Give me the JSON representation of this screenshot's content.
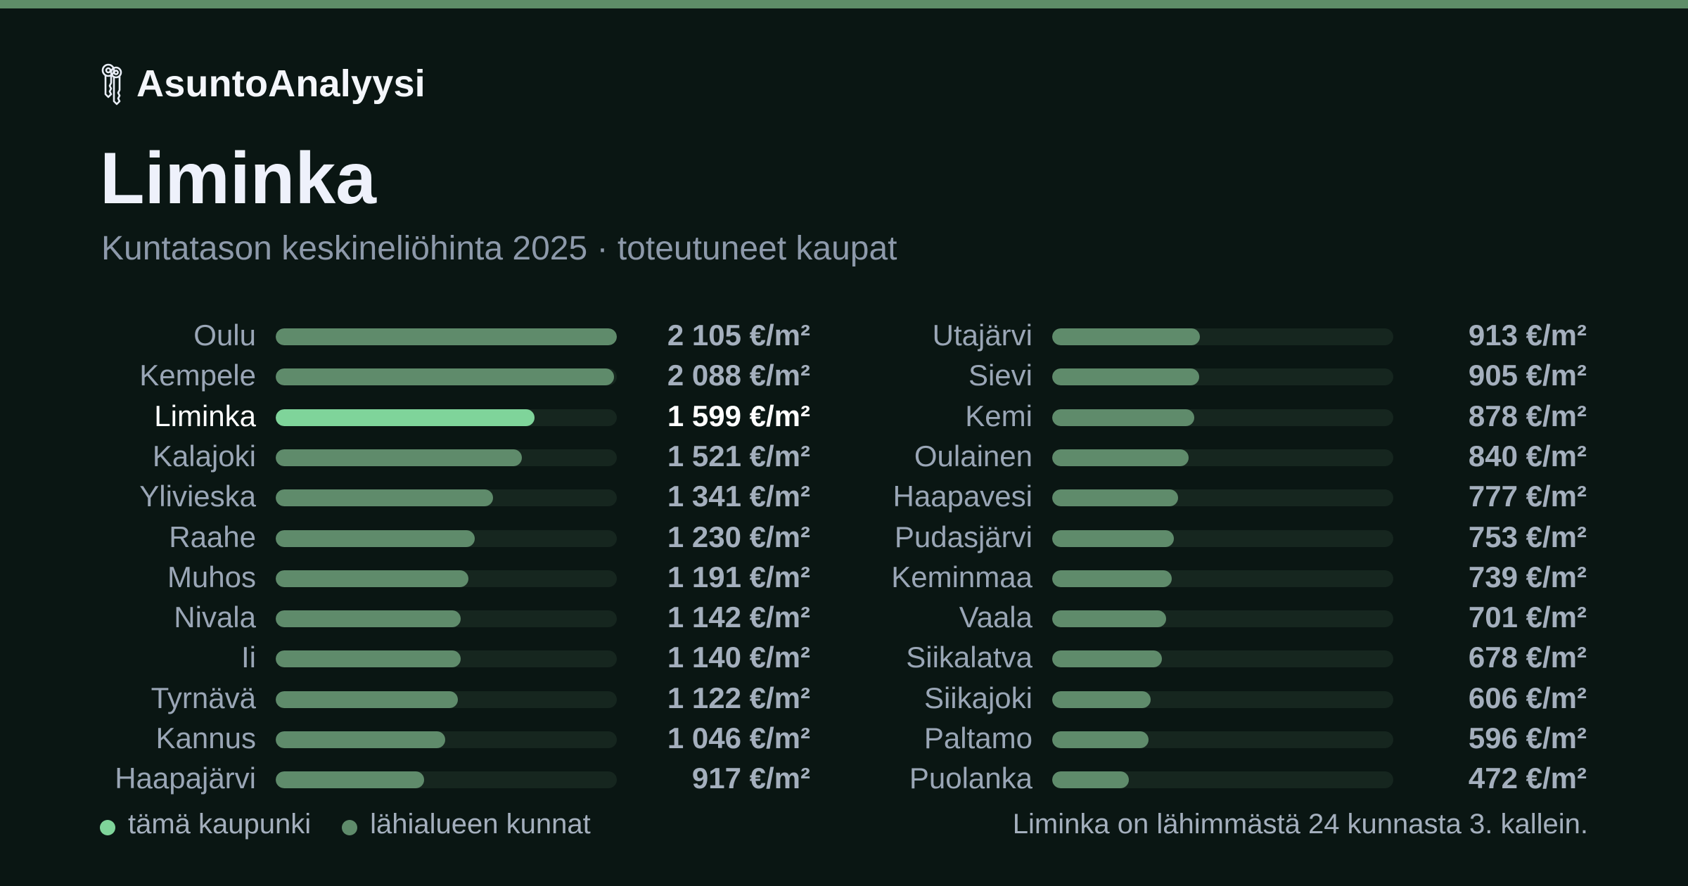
{
  "brand": {
    "name": "AsuntoAnalyysi",
    "icon": "keys-icon"
  },
  "title": "Liminka",
  "subtitle": "Kuntatason keskineliöhinta 2025 · toteutuneet kaupat",
  "colors": {
    "current_city": "#7fd49a",
    "nearby": "#5f8b6b",
    "track": "#16261f",
    "background": "#0a1613",
    "accent_bar": "#5e8d68"
  },
  "legend": [
    {
      "label": "tämä kaupunki",
      "color": "#7fd49a"
    },
    {
      "label": "lähialueen kunnat",
      "color": "#5f8b6b"
    }
  ],
  "footnote": "Liminka on lähimmästä 24 kunnasta 3. kallein.",
  "chart_data": {
    "type": "bar",
    "orientation": "horizontal",
    "unit": "€/m²",
    "xlim": [
      0,
      2105
    ],
    "highlight": "Liminka",
    "columns": [
      [
        {
          "name": "Oulu",
          "value": 2105,
          "label": "2 105 €/m²"
        },
        {
          "name": "Kempele",
          "value": 2088,
          "label": "2 088 €/m²"
        },
        {
          "name": "Liminka",
          "value": 1599,
          "label": "1 599 €/m²",
          "current": true
        },
        {
          "name": "Kalajoki",
          "value": 1521,
          "label": "1 521 €/m²"
        },
        {
          "name": "Ylivieska",
          "value": 1341,
          "label": "1 341 €/m²"
        },
        {
          "name": "Raahe",
          "value": 1230,
          "label": "1 230 €/m²"
        },
        {
          "name": "Muhos",
          "value": 1191,
          "label": "1 191 €/m²"
        },
        {
          "name": "Nivala",
          "value": 1142,
          "label": "1 142 €/m²"
        },
        {
          "name": "Ii",
          "value": 1140,
          "label": "1 140 €/m²"
        },
        {
          "name": "Tyrnävä",
          "value": 1122,
          "label": "1 122 €/m²"
        },
        {
          "name": "Kannus",
          "value": 1046,
          "label": "1 046 €/m²"
        },
        {
          "name": "Haapajärvi",
          "value": 917,
          "label": "917 €/m²"
        }
      ],
      [
        {
          "name": "Utajärvi",
          "value": 913,
          "label": "913 €/m²"
        },
        {
          "name": "Sievi",
          "value": 905,
          "label": "905 €/m²"
        },
        {
          "name": "Kemi",
          "value": 878,
          "label": "878 €/m²"
        },
        {
          "name": "Oulainen",
          "value": 840,
          "label": "840 €/m²"
        },
        {
          "name": "Haapavesi",
          "value": 777,
          "label": "777 €/m²"
        },
        {
          "name": "Pudasjärvi",
          "value": 753,
          "label": "753 €/m²"
        },
        {
          "name": "Keminmaa",
          "value": 739,
          "label": "739 €/m²"
        },
        {
          "name": "Vaala",
          "value": 701,
          "label": "701 €/m²"
        },
        {
          "name": "Siikalatva",
          "value": 678,
          "label": "678 €/m²"
        },
        {
          "name": "Siikajoki",
          "value": 606,
          "label": "606 €/m²"
        },
        {
          "name": "Paltamo",
          "value": 596,
          "label": "596 €/m²"
        },
        {
          "name": "Puolanka",
          "value": 472,
          "label": "472 €/m²"
        }
      ]
    ]
  }
}
